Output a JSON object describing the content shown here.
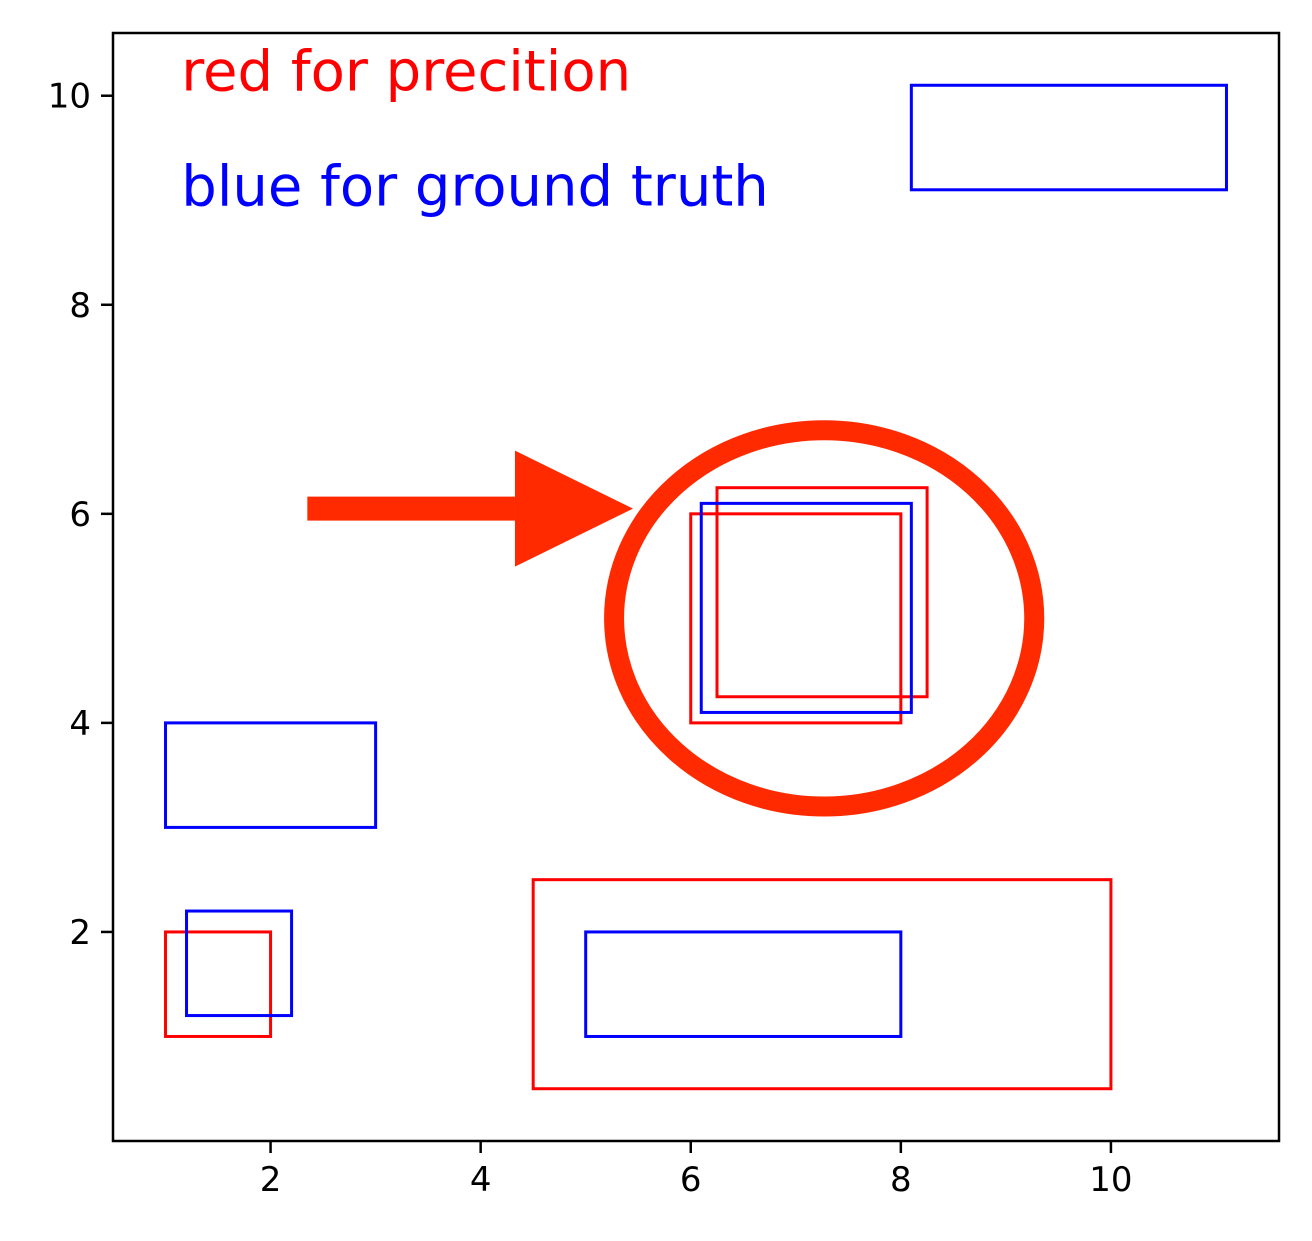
{
  "chart_data": {
    "type": "scatter",
    "title": "",
    "xlabel": "",
    "ylabel": "",
    "xlim": [
      0.5,
      11.6
    ],
    "ylim": [
      0.0,
      10.6
    ],
    "xticks": [
      2,
      4,
      6,
      8,
      10
    ],
    "yticks": [
      2,
      4,
      6,
      8,
      10
    ],
    "xtick_labels": [
      "2",
      "4",
      "6",
      "8",
      "10"
    ],
    "ytick_labels": [
      "2",
      "4",
      "6",
      "8",
      "10"
    ],
    "grid": false,
    "boxes": {
      "prediction": {
        "color": "#ff0000",
        "items": [
          {
            "x1": 1.0,
            "y1": 1.0,
            "x2": 2.0,
            "y2": 2.0
          },
          {
            "x1": 4.5,
            "y1": 0.5,
            "x2": 10.0,
            "y2": 2.5
          },
          {
            "x1": 6.0,
            "y1": 4.0,
            "x2": 8.0,
            "y2": 6.0
          },
          {
            "x1": 6.25,
            "y1": 4.25,
            "x2": 8.25,
            "y2": 6.25
          }
        ]
      },
      "ground_truth": {
        "color": "#0000ff",
        "items": [
          {
            "x1": 1.2,
            "y1": 1.2,
            "x2": 2.2,
            "y2": 2.2
          },
          {
            "x1": 1.0,
            "y1": 3.0,
            "x2": 3.0,
            "y2": 4.0
          },
          {
            "x1": 5.0,
            "y1": 1.0,
            "x2": 8.0,
            "y2": 2.0
          },
          {
            "x1": 6.1,
            "y1": 4.1,
            "x2": 8.1,
            "y2": 6.1
          },
          {
            "x1": 8.1,
            "y1": 9.1,
            "x2": 11.1,
            "y2": 10.1
          }
        ]
      }
    },
    "annotations": {
      "red_text": {
        "text": "red for precition",
        "color": "#ff0000",
        "x": 1.15,
        "y": 10.05
      },
      "blue_text": {
        "text": "blue for ground truth",
        "color": "#0000ff",
        "x": 1.15,
        "y": 8.95
      },
      "highlight_ellipse": {
        "color": "#ff2a00",
        "cx": 7.27,
        "cy": 5.0,
        "rx": 2.0,
        "ry": 1.8
      },
      "arrow": {
        "color": "#ff2a00",
        "x_start": 2.35,
        "x_end": 5.45,
        "y": 6.05
      }
    }
  }
}
